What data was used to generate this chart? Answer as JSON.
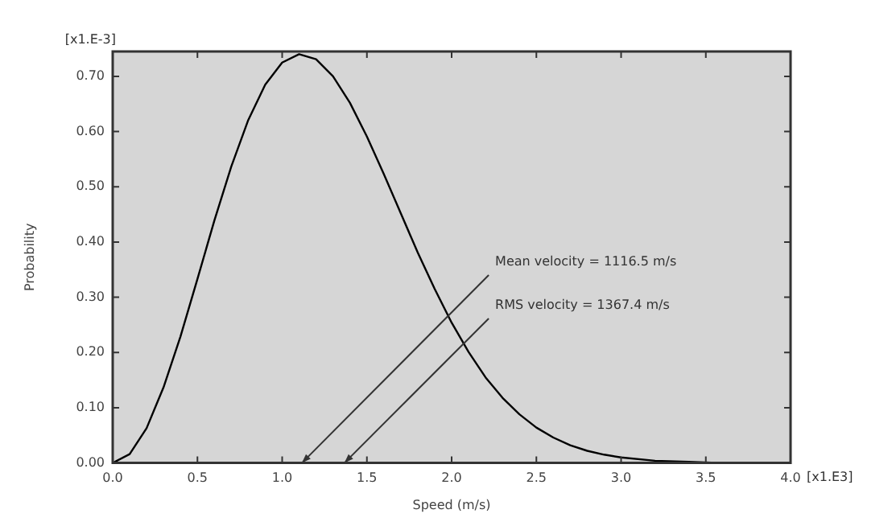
{
  "chart_data": {
    "type": "line",
    "xlabel": "Speed (m/s)",
    "ylabel": "Probability",
    "x": [
      0,
      0.1,
      0.2,
      0.3,
      0.4,
      0.5,
      0.6,
      0.7,
      0.8,
      0.9,
      1.0,
      1.1,
      1.2,
      1.3,
      1.4,
      1.5,
      1.6,
      1.7,
      1.8,
      1.9,
      2.0,
      2.1,
      2.2,
      2.3,
      2.4,
      2.5,
      2.6,
      2.7,
      2.8,
      2.9,
      3.0,
      3.2,
      3.4,
      3.6,
      3.8,
      4.0
    ],
    "series": [
      {
        "color": "#000000",
        "values": [
          0,
          0.016,
          0.063,
          0.137,
          0.229,
          0.333,
          0.439,
          0.537,
          0.621,
          0.685,
          0.725,
          0.74,
          0.731,
          0.7,
          0.652,
          0.591,
          0.523,
          0.452,
          0.381,
          0.315,
          0.254,
          0.201,
          0.155,
          0.118,
          0.088,
          0.064,
          0.046,
          0.032,
          0.022,
          0.015,
          0.01,
          0.004,
          0.002,
          0,
          0,
          0
        ]
      }
    ],
    "xlim": [
      0,
      4.0
    ],
    "ylim": [
      0,
      0.745
    ],
    "xticks": [
      {
        "value": 0,
        "label": "0.0"
      },
      {
        "value": 0.5,
        "label": "0.5"
      },
      {
        "value": 1,
        "label": "1.0"
      },
      {
        "value": 1.5,
        "label": "1.5"
      },
      {
        "value": 2,
        "label": "2.0"
      },
      {
        "value": 2.5,
        "label": "2.5"
      },
      {
        "value": 3,
        "label": "3.0"
      },
      {
        "value": 3.5,
        "label": "3.5"
      },
      {
        "value": 4,
        "label": "4.0"
      }
    ],
    "yticks": [
      {
        "value": 0,
        "label": "0.00"
      },
      {
        "value": 0.1,
        "label": "0.10"
      },
      {
        "value": 0.2,
        "label": "0.20"
      },
      {
        "value": 0.3,
        "label": "0.30"
      },
      {
        "value": 0.4,
        "label": "0.40"
      },
      {
        "value": 0.5,
        "label": "0.50"
      },
      {
        "value": 0.6,
        "label": "0.60"
      },
      {
        "value": 0.7,
        "label": "0.70"
      }
    ],
    "annotations": [
      "Mean velocity = 1116.5 m/s",
      "RMS velocity = 1367.4 m/s",
      "[x1.E-3]",
      "[x1.E3]"
    ],
    "grid": false,
    "legend": false,
    "marker": "none",
    "line_style": "solid"
  }
}
